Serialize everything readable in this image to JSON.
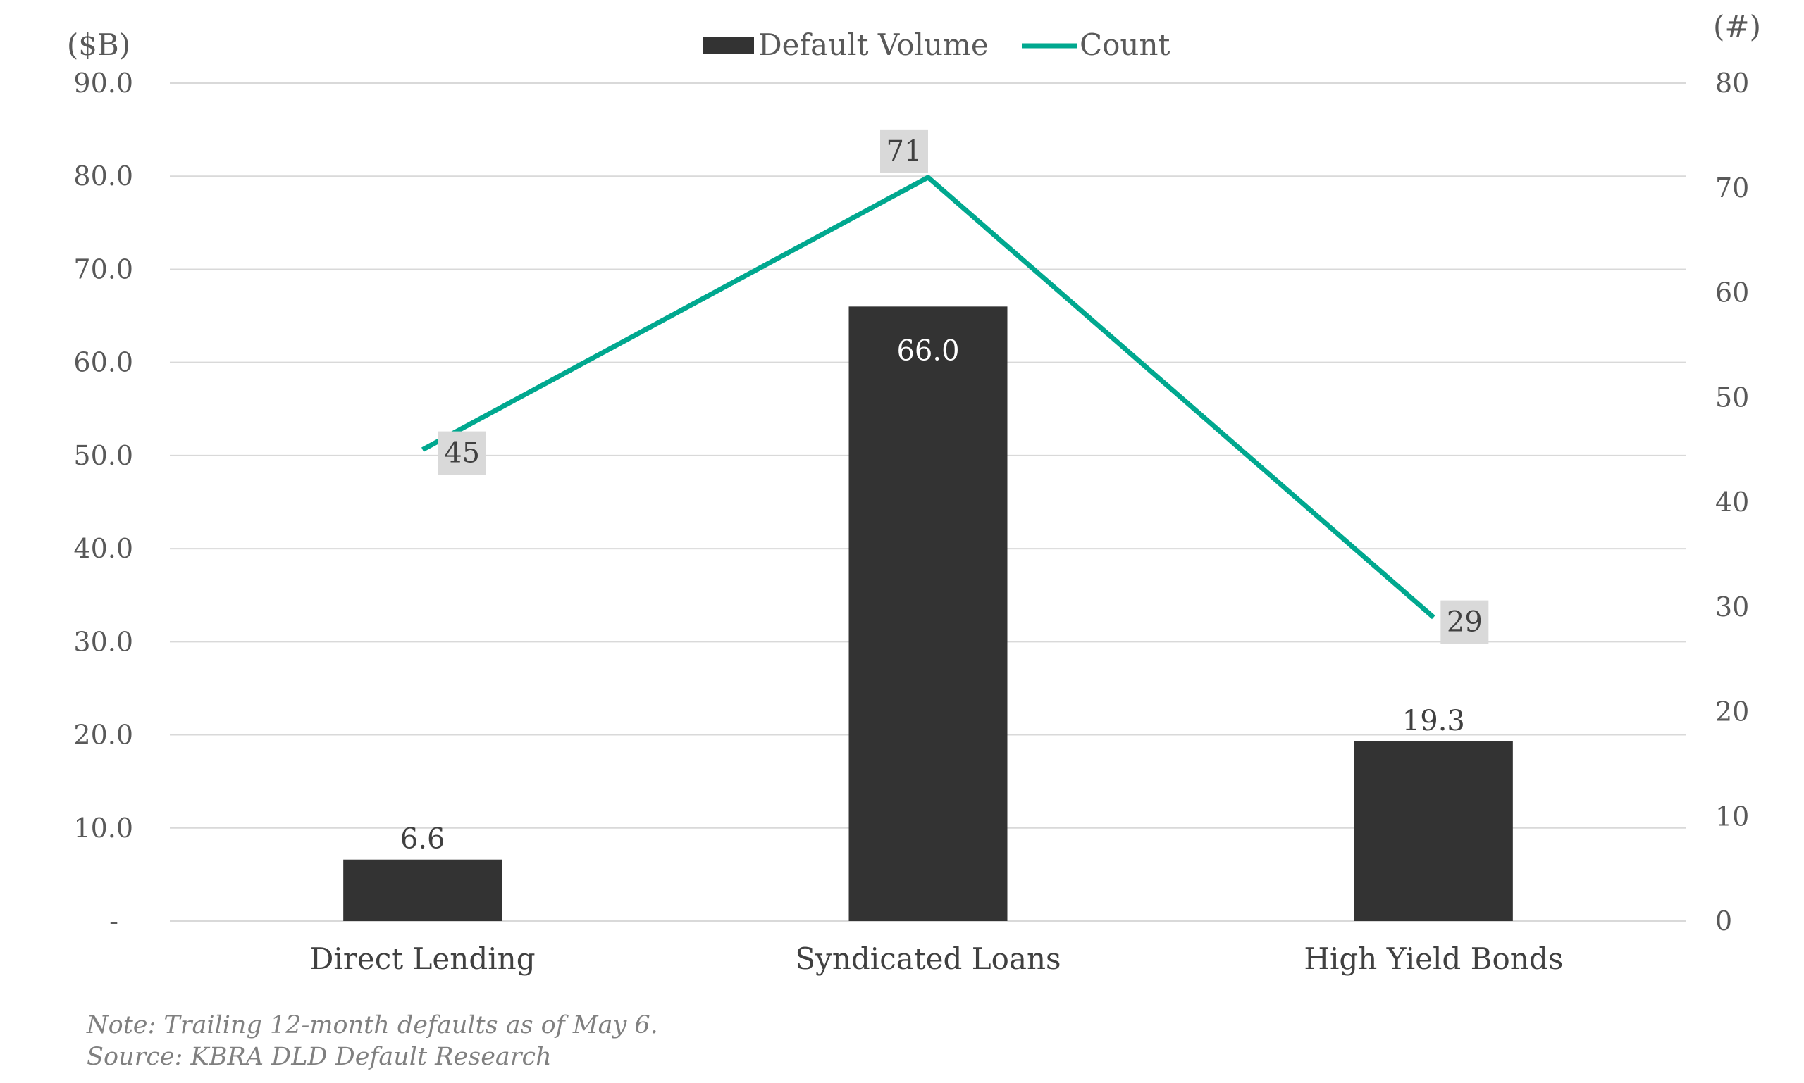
{
  "chart_data": {
    "type": "bar+line",
    "categories": [
      "Direct Lending",
      "Syndicated Loans",
      "High Yield Bonds"
    ],
    "series": [
      {
        "name": "Default Volume",
        "type": "bar",
        "axis": "left",
        "values": [
          6.6,
          66.0,
          19.3
        ],
        "labels": [
          "6.6",
          "66.0",
          "19.3"
        ],
        "color": "#333333"
      },
      {
        "name": "Count",
        "type": "line",
        "axis": "right",
        "values": [
          45,
          71,
          29
        ],
        "labels": [
          "45",
          "71",
          "29"
        ],
        "color": "#00A88F"
      }
    ],
    "y_left": {
      "label": "($B)",
      "range": [
        0,
        90
      ],
      "ticks": [
        "-",
        "10.0",
        "20.0",
        "30.0",
        "40.0",
        "50.0",
        "60.0",
        "70.0",
        "80.0",
        "90.0"
      ]
    },
    "y_right": {
      "label": "(#)",
      "range": [
        0,
        80
      ],
      "ticks": [
        "0",
        "10",
        "20",
        "30",
        "40",
        "50",
        "60",
        "70",
        "80"
      ]
    },
    "grid": true,
    "legend": "top-center",
    "notes": [
      "Note: Trailing 12-month defaults as of May 6.",
      "Source: KBRA DLD Default Research"
    ],
    "label_box_color": "#D9D9D9",
    "grid_color": "#D9D9D9"
  }
}
